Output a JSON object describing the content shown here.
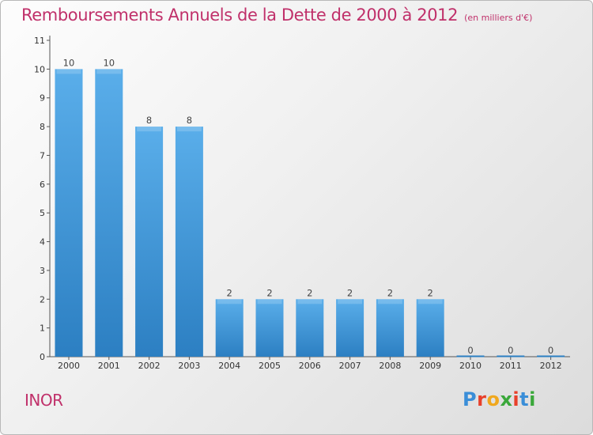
{
  "title": "Remboursements Annuels de la Dette de 2000 à 2012",
  "subtitle": "(en milliers d'€)",
  "commune": "INOR",
  "logo": {
    "letters": [
      "P",
      "r",
      "o",
      "x",
      "i",
      "t",
      "i"
    ],
    "colors": [
      "#3a8ed8",
      "#e8402a",
      "#f0a81e",
      "#3aa83a",
      "#e8402a",
      "#3a8ed8",
      "#3aa83a"
    ]
  },
  "colors": {
    "bar_light": "#5aaeea",
    "bar_dark": "#2c7fc2",
    "title": "#c0306a",
    "axis": "#555555"
  },
  "chart_data": {
    "type": "bar",
    "title": "Remboursements Annuels de la Dette de 2000 à 2012",
    "subtitle": "(en milliers d'€)",
    "categories": [
      "2000",
      "2001",
      "2002",
      "2003",
      "2004",
      "2005",
      "2006",
      "2007",
      "2008",
      "2009",
      "2010",
      "2011",
      "2012"
    ],
    "values": [
      10,
      10,
      8,
      8,
      2,
      2,
      2,
      2,
      2,
      2,
      0,
      0,
      0
    ],
    "data_labels": [
      "10",
      "10",
      "8",
      "8",
      "2",
      "2",
      "2",
      "2",
      "2",
      "2",
      "0",
      "0",
      "0"
    ],
    "y_ticks": [
      "0",
      "1",
      "2",
      "3",
      "4",
      "5",
      "6",
      "7",
      "8",
      "9",
      "10",
      "11"
    ],
    "ylim": [
      0,
      11
    ],
    "xlabel": "",
    "ylabel": "",
    "grid": false,
    "legend": "none"
  }
}
